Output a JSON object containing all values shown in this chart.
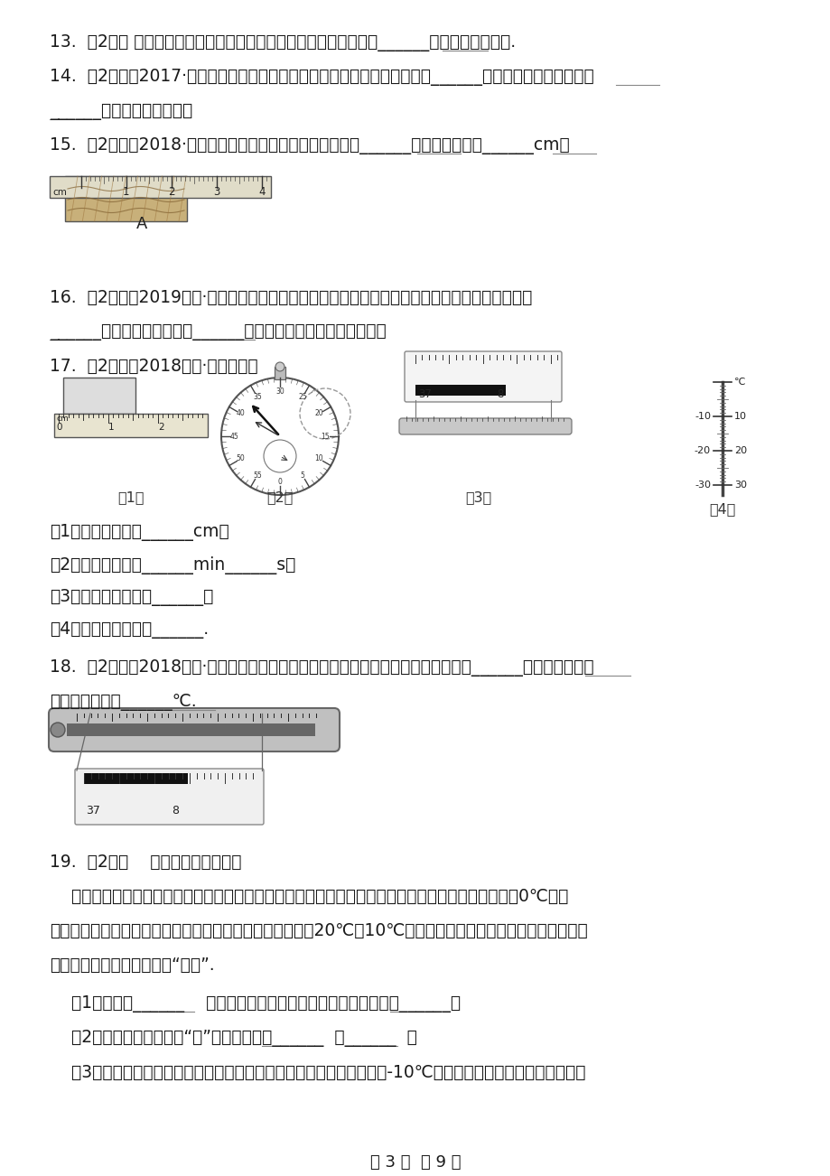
{
  "bg": "#ffffff",
  "fg": "#1a1a1a",
  "footer": "第 3 页  共 9 页",
  "q13": "13.  （2分） 可以利用超声波清洗精细的机械，是因为超声波产生的______比可闻声更加强烈.",
  "q14a": "14.  （2分）（2017·江阴模拟）小明在表演二胡时，用弓拉动琴弦，使琴弦______发声；二胡的声音是通过",
  "q14b": "______传播到我们耳中的。",
  "q15": "15.  （2分）（2018·临淤模拟）图中，所用刻度尺的分度值______，物体的长度是______cm；",
  "q16a": "16.  （2分）（2019九上·百色期末）教室里的日光灯用久了，灯管两端会变黑，原因是鸨丝先发生",
  "q16b": "______，然后在灯管壁发生______的缘故。（两空均填物态变化）",
  "q17": "17.  （2劆）（2018八上·郑州月考）",
  "q17s1": "（1）物体的宽度是______cm；",
  "q17s2": "（2）停表的读数是______min______s；",
  "q17s3": "（3）体温计的读数是______；",
  "q17s4": "（4）温度计的示数是______.",
  "q18a": "18.  （2分）（2018八上·新吴期中）如图是生活中常用的体温计，它是根据测温液体______的性质制成的，",
  "q18b": "该体温计读数是______℃.",
  "q19h": "19.  （2分）    阅读短文，回答问题",
  "q19p1": "    有霜的季节，农作物常被冻坏，这就是人们常说的遇到霜冻，实际上，农作物不是因为霜而受冻的，0℃以下",
  "q19p2": "的低气温才是真正的凶手。当空气干燥时，即使温度降低到20℃～10℃，也不会出现霜，但此时农作物早就被冻",
  "q19p3": "坏了，农民们称这种情况为“黑霜”.",
  "q19s1": "    （1）霜是由______    直接变为小冰晶形成的，对应的物态变化是______。",
  "q19s2": "    （2）小红由短文猜想：“霜”形成的条件是______  和______  。",
  "q19s3": "    （3）小明为了验证小红的上述猜想，做了如下实验：从冰笱取出一些-10℃的冰块，放在不锈锤杯子里，一段"
}
